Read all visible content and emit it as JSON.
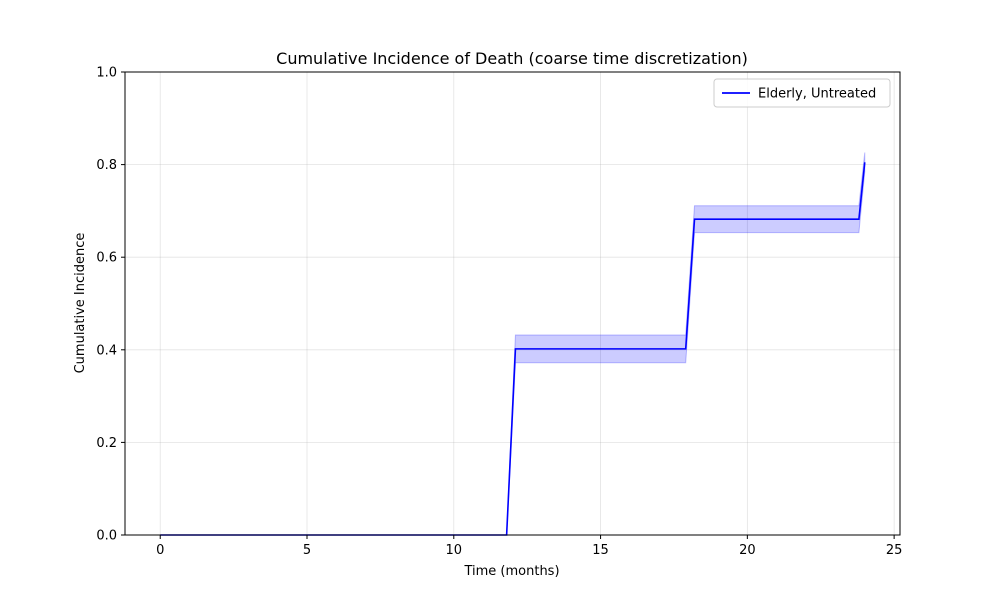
{
  "chart_data": {
    "type": "line",
    "title": "Cumulative Incidence of Death (coarse time discretization)",
    "xlabel": "Time (months)",
    "ylabel": "Cumulative Incidence",
    "xlim": [
      -1.2,
      25.2
    ],
    "ylim": [
      0.0,
      1.0
    ],
    "xticks": [
      0,
      5,
      10,
      15,
      20,
      25
    ],
    "yticks": [
      0.0,
      0.2,
      0.4,
      0.6,
      0.8,
      1.0
    ],
    "xtick_labels": [
      "0",
      "5",
      "10",
      "15",
      "20",
      "25"
    ],
    "ytick_labels": [
      "0.0",
      "0.2",
      "0.4",
      "0.6",
      "0.8",
      "1.0"
    ],
    "grid": true,
    "legend_position": "top-right",
    "series": [
      {
        "name": "Elderly, Untreated",
        "color": "#0000ff",
        "x": [
          0,
          11.8,
          12.1,
          17.9,
          18.2,
          23.8,
          24.0
        ],
        "y": [
          0.0,
          0.0,
          0.402,
          0.402,
          0.682,
          0.682,
          0.805
        ],
        "ci_lower": [
          0.0,
          0.0,
          0.372,
          0.372,
          0.653,
          0.653,
          0.785
        ],
        "ci_upper": [
          0.0,
          0.0,
          0.432,
          0.432,
          0.711,
          0.711,
          0.826
        ],
        "band_color": "#0000ff"
      }
    ]
  }
}
